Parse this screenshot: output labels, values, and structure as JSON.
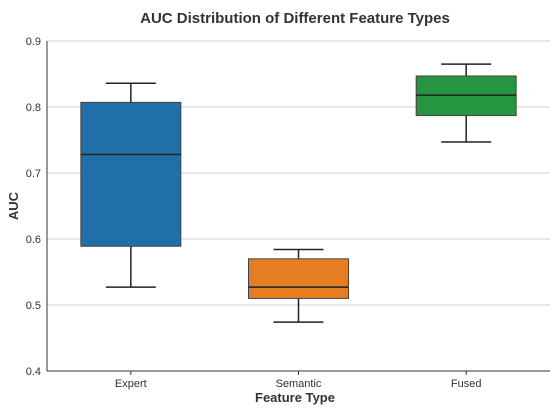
{
  "chart_data": {
    "type": "box",
    "title": "AUC Distribution of Different Feature Types",
    "xlabel": "Feature Type",
    "ylabel": "AUC",
    "ylim": [
      0.4,
      0.9
    ],
    "yticks": [
      "0.4",
      "0.5",
      "0.6",
      "0.7",
      "0.8",
      "0.9"
    ],
    "grid": "horizontal",
    "categories": [
      "Expert",
      "Semantic",
      "Fused"
    ],
    "boxes": [
      {
        "category": "Expert",
        "whisker_low": 0.527,
        "q1": 0.589,
        "median": 0.728,
        "q3": 0.807,
        "whisker_high": 0.836,
        "color": "#1f6fa8"
      },
      {
        "category": "Semantic",
        "whisker_low": 0.474,
        "q1": 0.51,
        "median": 0.527,
        "q3": 0.57,
        "whisker_high": 0.584,
        "color": "#e57e22"
      },
      {
        "category": "Fused",
        "whisker_low": 0.747,
        "q1": 0.787,
        "median": 0.818,
        "q3": 0.847,
        "whisker_high": 0.865,
        "color": "#26953f"
      }
    ]
  }
}
